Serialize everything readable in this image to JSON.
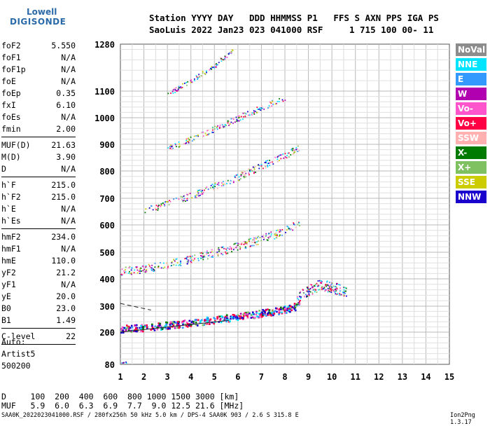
{
  "logo": {
    "top": "Lowell",
    "bottom": "DIGISONDE"
  },
  "header": {
    "line1": "Station YYYY DAY   DDD HHMMSS P1   FFS S AXN PPS IGA PS",
    "line2": "SaoLuis 2022 Jan23 023 041000 RSF     1 715 100 00- 11"
  },
  "params": [
    {
      "label": "foF2",
      "value": "5.550"
    },
    {
      "label": "foF1",
      "value": "N/A"
    },
    {
      "label": "foF1p",
      "value": "N/A"
    },
    {
      "label": "foE",
      "value": "N/A"
    },
    {
      "label": "foEp",
      "value": "0.35"
    },
    {
      "label": "fxI",
      "value": "6.10"
    },
    {
      "label": "foEs",
      "value": "N/A"
    },
    {
      "label": "fmin",
      "value": "2.00"
    },
    {
      "label": "MUF(D)",
      "value": "21.63"
    },
    {
      "label": "M(D)",
      "value": "3.90"
    },
    {
      "label": "D",
      "value": "N/A"
    },
    {
      "label": "h`F",
      "value": "215.0"
    },
    {
      "label": "h`F2",
      "value": "215.0"
    },
    {
      "label": "h`E",
      "value": "N/A"
    },
    {
      "label": "h`Es",
      "value": "N/A"
    },
    {
      "label": "hmF2",
      "value": "234.0"
    },
    {
      "label": "hmF1",
      "value": "N/A"
    },
    {
      "label": "hmE",
      "value": "110.0"
    },
    {
      "label": "yF2",
      "value": "21.2"
    },
    {
      "label": "yF1",
      "value": "N/A"
    },
    {
      "label": "yE",
      "value": "20.0"
    },
    {
      "label": "B0",
      "value": "23.0"
    },
    {
      "label": "B1",
      "value": "1.49"
    },
    {
      "label": "C-level",
      "value": "22"
    }
  ],
  "auto": {
    "label": "Auto:",
    "artist": "Artist5",
    "code": "500200"
  },
  "legend": [
    {
      "label": "NoVal",
      "color": "#8c8c8c"
    },
    {
      "label": "NNE",
      "color": "#00e5ff"
    },
    {
      "label": "E",
      "color": "#3399ff"
    },
    {
      "label": "W",
      "color": "#b000b0"
    },
    {
      "label": "Vo-",
      "color": "#ff55cc"
    },
    {
      "label": "Vo+",
      "color": "#ff0044"
    },
    {
      "label": "SSW",
      "color": "#ffb0b0"
    },
    {
      "label": "X-",
      "color": "#007a00"
    },
    {
      "label": "X+",
      "color": "#7fc060"
    },
    {
      "label": "SSE",
      "color": "#cccc00"
    },
    {
      "label": "NNW",
      "color": "#1a00cc"
    }
  ],
  "footer": {
    "d_line": "D     100  200  400  600  800 1000 1500 3000 [km]",
    "muf_line": "MUF   5.9  6.0  6.3  6.9  7.7  9.0 12.5 21.6 [MHz]",
    "note": "SAA0K_2022023041000.RSF / 280fx256h 50 kHz 5.0 km / DPS-4 SAA0K 903 / 2.6 S 315.8 E",
    "version": "Ion2Png 1.3.17"
  },
  "chart_data": {
    "type": "scatter",
    "title": "",
    "xlabel": "",
    "ylabel": "",
    "xlim": [
      1,
      15
    ],
    "ylim": [
      80,
      1280
    ],
    "x_ticks": [
      "1",
      "2",
      "3",
      "4",
      "5",
      "6",
      "7",
      "8",
      "9",
      "10",
      "11",
      "12",
      "13",
      "14",
      "15"
    ],
    "y_ticks": [
      "80",
      "200",
      "300",
      "400",
      "500",
      "600",
      "700",
      "800",
      "900",
      "1000",
      "1100",
      "1280"
    ],
    "y_tick_values": [
      80,
      200,
      300,
      400,
      500,
      600,
      700,
      800,
      900,
      1000,
      1100,
      1280
    ],
    "traces": [
      {
        "name": "F-layer 1st hop",
        "x": [
          1.0,
          2.0,
          3.0,
          4.0,
          5.0,
          5.5,
          6.0,
          7.0,
          8.0,
          8.6
        ],
        "y": [
          215,
          220,
          228,
          238,
          250,
          256,
          262,
          275,
          290,
          305
        ]
      },
      {
        "name": "F-layer 2nd hop",
        "x": [
          1.0,
          2.0,
          3.0,
          4.0,
          5.0,
          6.0,
          7.0,
          8.0,
          8.6
        ],
        "y": [
          430,
          440,
          456,
          476,
          500,
          524,
          550,
          580,
          610
        ]
      },
      {
        "name": "F-layer 3rd hop",
        "x": [
          2.0,
          3.0,
          4.0,
          5.0,
          6.0,
          7.0,
          8.0,
          8.6
        ],
        "y": [
          655,
          680,
          710,
          745,
          780,
          820,
          860,
          890
        ]
      },
      {
        "name": "F-layer 4th hop",
        "x": [
          3.0,
          4.0,
          5.0,
          6.0,
          7.0,
          8.0
        ],
        "y": [
          885,
          920,
          960,
          1000,
          1040,
          1075
        ]
      },
      {
        "name": "F-layer 5th hop",
        "x": [
          3.0,
          4.0,
          5.0,
          5.8
        ],
        "y": [
          1090,
          1140,
          1200,
          1260
        ]
      },
      {
        "name": "Spread",
        "x": [
          8.5,
          9.0,
          9.5,
          10.0,
          10.6
        ],
        "y": [
          330,
          360,
          380,
          370,
          355
        ]
      },
      {
        "name": "Low-height echoes",
        "x": [
          1.0,
          1.3
        ],
        "y": [
          90,
          88
        ]
      }
    ],
    "lines": [
      {
        "name": "fit-upper",
        "x": [
          1.0,
          2.3
        ],
        "y": [
          310,
          285
        ]
      },
      {
        "name": "fit-lower",
        "x": [
          1.0,
          5.6
        ],
        "y": [
          200,
          245
        ]
      }
    ],
    "grid": true,
    "legend_position": "right"
  }
}
